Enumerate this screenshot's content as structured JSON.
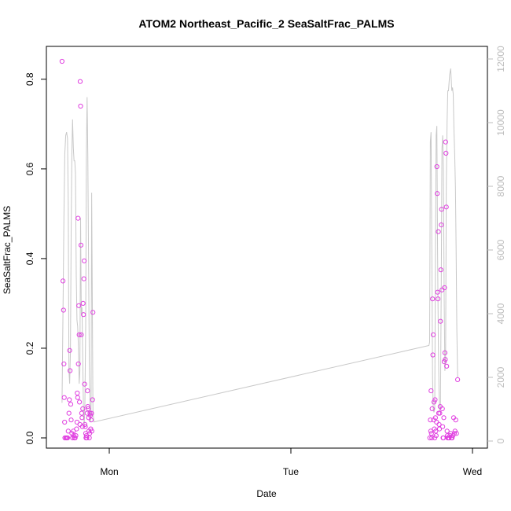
{
  "chart_data": {
    "type": "scatter",
    "title": "ATOM2 Northeast_Pacific_2 SeaSaltFrac_PALMS",
    "xlabel": "Date",
    "ylabel": "SeaSaltFrac_PALMS",
    "x_tick_labels": [
      "Mon",
      "Tue",
      "Wed"
    ],
    "y_ticks": [
      0.0,
      0.2,
      0.4,
      0.6,
      0.8
    ],
    "y_tick_labels": [
      "0.0",
      "0.2",
      "0.4",
      "0.6",
      "0.8"
    ],
    "y_range": [
      0.0,
      0.84
    ],
    "y2_ticks": [
      0,
      2000,
      4000,
      6000,
      8000,
      10000,
      12000
    ],
    "y2_tick_labels": [
      "0",
      "2000",
      "4000",
      "6000",
      "8000",
      "10000",
      "12000"
    ],
    "y2_range": [
      0,
      12000
    ],
    "grid": false,
    "series": [
      {
        "color": "#e040e0",
        "marker": "open-circle",
        "points": [
          [
            -0.26,
            0.84
          ],
          [
            -0.255,
            0.35
          ],
          [
            -0.252,
            0.285
          ],
          [
            -0.25,
            0.165
          ],
          [
            -0.248,
            0.09
          ],
          [
            -0.246,
            0.035
          ],
          [
            -0.244,
            0.0
          ],
          [
            -0.238,
            0.0
          ],
          [
            -0.234,
            0.0
          ],
          [
            -0.23,
            0.0
          ],
          [
            -0.226,
            0.015
          ],
          [
            -0.222,
            0.055
          ],
          [
            -0.22,
            0.085
          ],
          [
            -0.218,
            0.195
          ],
          [
            -0.216,
            0.15
          ],
          [
            -0.212,
            0.075
          ],
          [
            -0.21,
            0.04
          ],
          [
            -0.206,
            0.01
          ],
          [
            -0.202,
            0.0
          ],
          [
            -0.198,
            0.015
          ],
          [
            -0.196,
            0.005
          ],
          [
            -0.192,
            0.0
          ],
          [
            -0.188,
            0.0
          ],
          [
            -0.184,
            0.005
          ],
          [
            -0.18,
            0.02
          ],
          [
            -0.178,
            0.035
          ],
          [
            -0.176,
            0.1
          ],
          [
            -0.174,
            0.09
          ],
          [
            -0.172,
            0.49
          ],
          [
            -0.17,
            0.165
          ],
          [
            -0.168,
            0.295
          ],
          [
            -0.166,
            0.23
          ],
          [
            -0.164,
            0.08
          ],
          [
            -0.162,
            0.03
          ],
          [
            -0.16,
            0.795
          ],
          [
            -0.158,
            0.74
          ],
          [
            -0.156,
            0.43
          ],
          [
            -0.154,
            0.23
          ],
          [
            -0.152,
            0.055
          ],
          [
            -0.15,
            0.045
          ],
          [
            -0.148,
            0.025
          ],
          [
            -0.146,
            0.065
          ],
          [
            -0.144,
            0.3
          ],
          [
            -0.142,
            0.275
          ],
          [
            -0.14,
            0.355
          ],
          [
            -0.138,
            0.395
          ],
          [
            -0.136,
            0.12
          ],
          [
            -0.134,
            0.03
          ],
          [
            -0.132,
            0.025
          ],
          [
            -0.13,
            0.01
          ],
          [
            -0.128,
            0.0
          ],
          [
            -0.126,
            0.005
          ],
          [
            -0.124,
            0.0
          ],
          [
            -0.122,
            0.055
          ],
          [
            -0.12,
            0.105
          ],
          [
            -0.118,
            0.07
          ],
          [
            -0.116,
            0.065
          ],
          [
            -0.114,
            0.045
          ],
          [
            -0.112,
            0.015
          ],
          [
            -0.11,
            0.0
          ],
          [
            -0.108,
            0.01
          ],
          [
            -0.106,
            0.055
          ],
          [
            -0.104,
            0.05
          ],
          [
            -0.102,
            0.02
          ],
          [
            -0.1,
            0.04
          ],
          [
            -0.098,
            0.055
          ],
          [
            -0.096,
            0.015
          ],
          [
            -0.092,
            0.085
          ],
          [
            -0.09,
            0.28
          ],
          [
            1.765,
            0.0
          ],
          [
            1.768,
            0.04
          ],
          [
            1.77,
            0.015
          ],
          [
            1.772,
            0.105
          ],
          [
            1.774,
            0.01
          ],
          [
            1.776,
            0.0
          ],
          [
            1.778,
            0.065
          ],
          [
            1.78,
            0.31
          ],
          [
            1.782,
            0.185
          ],
          [
            1.784,
            0.23
          ],
          [
            1.786,
            0.04
          ],
          [
            1.788,
            0.08
          ],
          [
            1.79,
            0.02
          ],
          [
            1.792,
            0.0
          ],
          [
            1.794,
            0.085
          ],
          [
            1.796,
            0.045
          ],
          [
            1.798,
            0.015
          ],
          [
            1.8,
            0.005
          ],
          [
            1.802,
            0.035
          ],
          [
            1.804,
            0.605
          ],
          [
            1.806,
            0.545
          ],
          [
            1.808,
            0.325
          ],
          [
            1.81,
            0.31
          ],
          [
            1.812,
            0.46
          ],
          [
            1.814,
            0.055
          ],
          [
            1.816,
            0.03
          ],
          [
            1.818,
            0.02
          ],
          [
            1.82,
            0.055
          ],
          [
            1.822,
            0.07
          ],
          [
            1.824,
            0.26
          ],
          [
            1.826,
            0.375
          ],
          [
            1.828,
            0.475
          ],
          [
            1.83,
            0.51
          ],
          [
            1.832,
            0.33
          ],
          [
            1.834,
            0.065
          ],
          [
            1.836,
            0.025
          ],
          [
            1.838,
            0.0
          ],
          [
            1.84,
            0.0
          ],
          [
            1.842,
            0.045
          ],
          [
            1.844,
            0.17
          ],
          [
            1.846,
            0.335
          ],
          [
            1.848,
            0.19
          ],
          [
            1.85,
            0.175
          ],
          [
            1.852,
            0.66
          ],
          [
            1.854,
            0.635
          ],
          [
            1.856,
            0.515
          ],
          [
            1.858,
            0.16
          ],
          [
            1.86,
            0.015
          ],
          [
            1.862,
            0.005
          ],
          [
            1.864,
            0.0
          ],
          [
            1.868,
            0.0
          ],
          [
            1.872,
            0.0
          ],
          [
            1.876,
            0.005
          ],
          [
            1.88,
            0.01
          ],
          [
            1.884,
            0.0
          ],
          [
            1.888,
            0.0
          ],
          [
            1.892,
            0.005
          ],
          [
            1.896,
            0.045
          ],
          [
            1.9,
            0.01
          ],
          [
            1.904,
            0.015
          ],
          [
            1.908,
            0.04
          ],
          [
            1.912,
            0.01
          ],
          [
            1.918,
            0.13
          ]
        ]
      },
      {
        "color": "#c8c8c8",
        "marker": "line",
        "axis": "right",
        "points": [
          [
            -0.26,
            1200
          ],
          [
            -0.255,
            4000
          ],
          [
            -0.25,
            7000
          ],
          [
            -0.245,
            9000
          ],
          [
            -0.24,
            9600
          ],
          [
            -0.235,
            9700
          ],
          [
            -0.23,
            9500
          ],
          [
            -0.226,
            7500
          ],
          [
            -0.222,
            2200
          ],
          [
            -0.218,
            1800
          ],
          [
            -0.214,
            2800
          ],
          [
            -0.21,
            6500
          ],
          [
            -0.206,
            9000
          ],
          [
            -0.202,
            10100
          ],
          [
            -0.198,
            9200
          ],
          [
            -0.194,
            8800
          ],
          [
            -0.19,
            8800
          ],
          [
            -0.186,
            8400
          ],
          [
            -0.182,
            5200
          ],
          [
            -0.178,
            3800
          ],
          [
            -0.174,
            3600
          ],
          [
            -0.17,
            3000
          ],
          [
            -0.166,
            1800
          ],
          [
            -0.162,
            2200
          ],
          [
            -0.158,
            7000
          ],
          [
            -0.154,
            4000
          ],
          [
            -0.15,
            4200
          ],
          [
            -0.146,
            2500
          ],
          [
            -0.142,
            900
          ],
          [
            -0.138,
            500
          ],
          [
            -0.134,
            1200
          ],
          [
            -0.13,
            3600
          ],
          [
            -0.126,
            9000
          ],
          [
            -0.122,
            10800
          ],
          [
            -0.118,
            9000
          ],
          [
            -0.114,
            5500
          ],
          [
            -0.11,
            2500
          ],
          [
            -0.106,
            1000
          ],
          [
            -0.102,
            600
          ],
          [
            -0.1,
            1200
          ],
          [
            -0.097,
            7800
          ],
          [
            -0.094,
            5000
          ],
          [
            -0.09,
            1000
          ],
          [
            -0.085,
            600
          ],
          [
            1.76,
            3000
          ],
          [
            1.764,
            3100
          ],
          [
            1.768,
            9400
          ],
          [
            1.772,
            9700
          ],
          [
            1.776,
            6000
          ],
          [
            1.78,
            2000
          ],
          [
            1.784,
            1000
          ],
          [
            1.788,
            900
          ],
          [
            1.792,
            1000
          ],
          [
            1.796,
            6000
          ],
          [
            1.8,
            9600
          ],
          [
            1.804,
            9900
          ],
          [
            1.808,
            6000
          ],
          [
            1.812,
            3000
          ],
          [
            1.816,
            1500
          ],
          [
            1.82,
            900
          ],
          [
            1.824,
            1200
          ],
          [
            1.828,
            5000
          ],
          [
            1.832,
            9200
          ],
          [
            1.836,
            9600
          ],
          [
            1.84,
            8600
          ],
          [
            1.844,
            4500
          ],
          [
            1.848,
            2200
          ],
          [
            1.852,
            2600
          ],
          [
            1.856,
            8000
          ],
          [
            1.86,
            10000
          ],
          [
            1.864,
            11000
          ],
          [
            1.868,
            11000
          ],
          [
            1.874,
            11500
          ],
          [
            1.88,
            11700
          ],
          [
            1.886,
            11000
          ],
          [
            1.89,
            11100
          ],
          [
            1.894,
            10900
          ],
          [
            1.898,
            9800
          ],
          [
            1.902,
            9000
          ],
          [
            1.906,
            8000
          ],
          [
            1.91,
            6000
          ],
          [
            1.914,
            3500
          ],
          [
            1.918,
            2000
          ]
        ]
      }
    ]
  }
}
